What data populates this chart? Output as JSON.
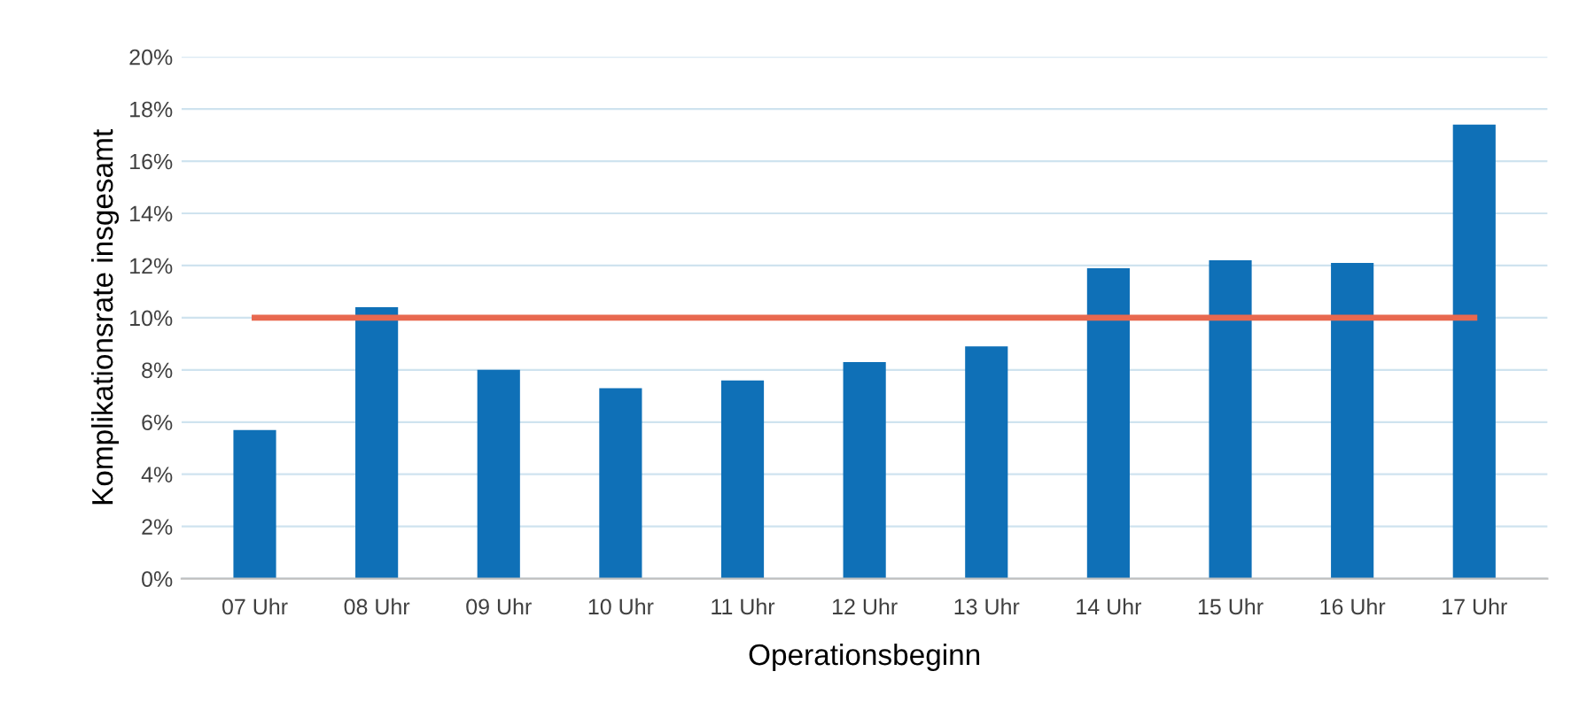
{
  "chart_data": {
    "type": "bar",
    "xlabel": "Operationsbeginn",
    "ylabel": "Komplikationsrate insgesamt",
    "categories": [
      "07 Uhr",
      "08 Uhr",
      "09 Uhr",
      "10 Uhr",
      "11 Uhr",
      "12 Uhr",
      "13 Uhr",
      "14 Uhr",
      "15 Uhr",
      "16 Uhr",
      "17 Uhr"
    ],
    "series": [
      {
        "color": "#0f70b7",
        "values": [
          5.7,
          10.4,
          8.0,
          7.3,
          7.6,
          8.3,
          8.9,
          11.9,
          12.2,
          12.1,
          17.4
        ]
      },
      {
        "type": "line",
        "color": "#e8684f",
        "values": [
          10,
          10,
          10,
          10,
          10,
          10,
          10,
          10,
          10,
          10,
          10
        ]
      }
    ],
    "ylim": [
      0,
      20
    ],
    "yticks": [
      {
        "value": 0,
        "label": "0%"
      },
      {
        "value": 2,
        "label": "2%"
      },
      {
        "value": 4,
        "label": "4%"
      },
      {
        "value": 6,
        "label": "6%"
      },
      {
        "value": 8,
        "label": "8%"
      },
      {
        "value": 10,
        "label": "10%"
      },
      {
        "value": 12,
        "label": "12%"
      },
      {
        "value": 14,
        "label": "14%"
      },
      {
        "value": 16,
        "label": "16%"
      },
      {
        "value": 18,
        "label": "18%"
      },
      {
        "value": 20,
        "label": "20%"
      }
    ],
    "grid": "y"
  }
}
